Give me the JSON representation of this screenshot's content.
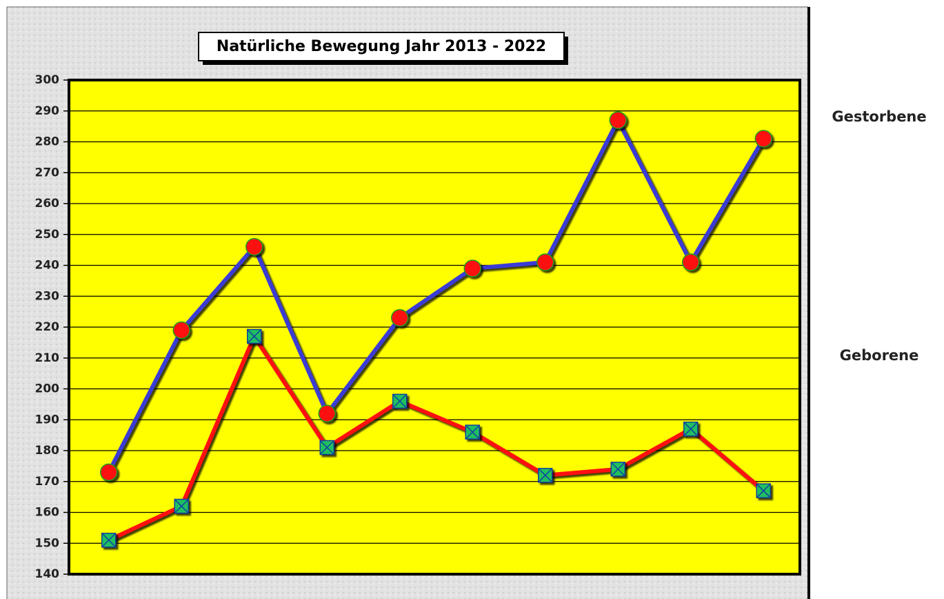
{
  "chart_data": {
    "type": "line",
    "title": "Natürliche Bewegung Jahr 2013 - 2022",
    "categories": [
      null,
      null,
      null,
      null,
      null,
      null,
      null,
      null,
      null,
      null
    ],
    "series": [
      {
        "name": "Gestorbene",
        "color": "#3b3bd6",
        "marker": "circle",
        "marker_color": "#ff1010",
        "values": [
          173,
          219,
          246,
          192,
          223,
          239,
          241,
          287,
          241,
          281
        ]
      },
      {
        "name": "Geborene",
        "color": "#ff1010",
        "marker": "square",
        "marker_color": "#20c060",
        "values": [
          151,
          162,
          217,
          181,
          196,
          186,
          172,
          174,
          187,
          167
        ]
      }
    ],
    "ylim": [
      140,
      300
    ],
    "yticks": [
      140,
      150,
      160,
      170,
      180,
      190,
      200,
      210,
      220,
      230,
      240,
      250,
      260,
      270,
      280,
      290,
      300
    ],
    "grid": true,
    "plot_background": "#ffff00",
    "legend": "right"
  }
}
